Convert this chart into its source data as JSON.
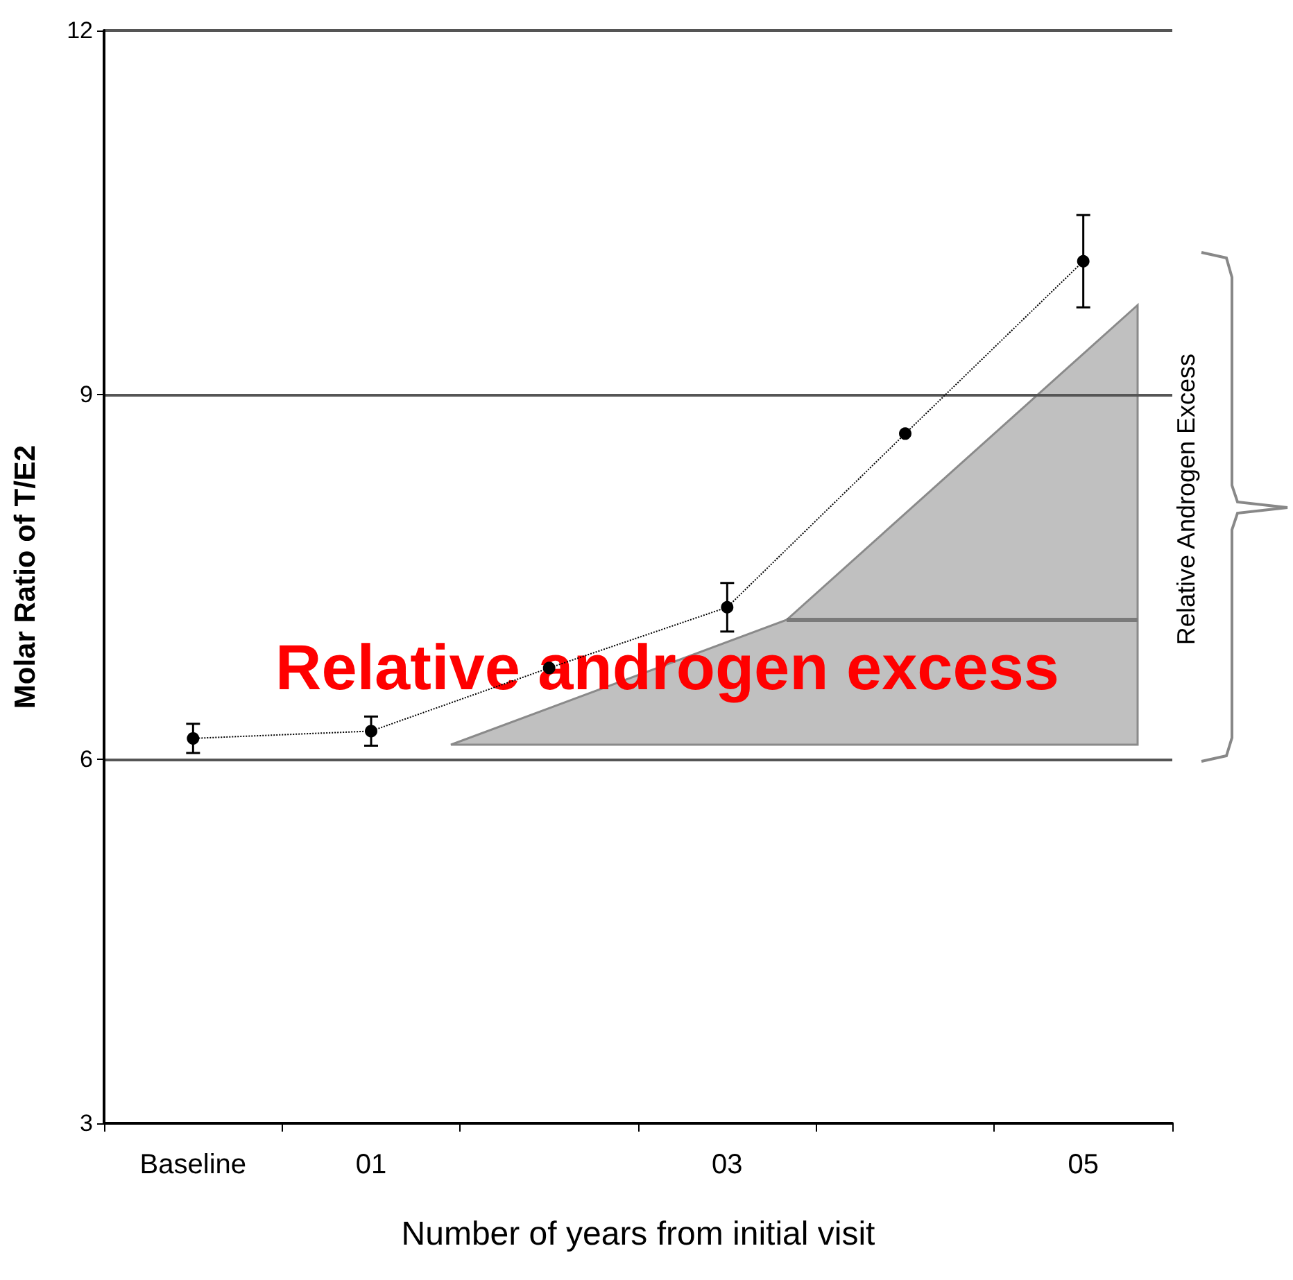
{
  "chart_data": {
    "type": "line",
    "xlabel": "Number of years from initial visit",
    "ylabel": "Molar Ratio of T/E2",
    "categories": [
      "Baseline",
      "01",
      null,
      "03",
      null,
      "05"
    ],
    "values": [
      6.17,
      6.23,
      6.75,
      7.25,
      8.68,
      10.1
    ],
    "errors": [
      0.12,
      0.12,
      null,
      0.2,
      null,
      0.38
    ],
    "color": "#000000",
    "marker": "circle",
    "line_style": "dotted",
    "ylim": [
      3,
      12
    ],
    "yticks": [
      3,
      6,
      9,
      12
    ],
    "grid": "y",
    "annotations": [
      "Relative androgen excess",
      "Relative Androgen Excess"
    ]
  }
}
